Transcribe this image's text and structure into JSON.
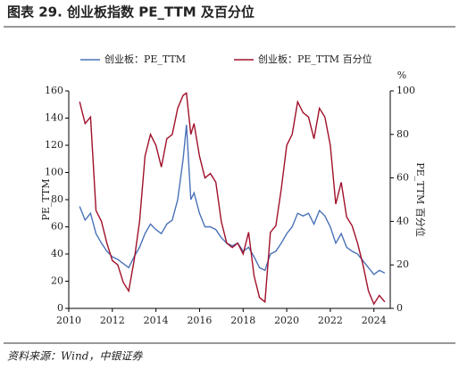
{
  "chart_data": {
    "type": "line",
    "title": "图表 29. 创业板指数 PE_TTM 及百分位",
    "source": "资料来源：Wind，中银证券",
    "ylabel": "PE_TTM",
    "y2label": "PE_TTM 百分位",
    "y2unit": "%",
    "x": [
      2010.5,
      2010.75,
      2011.0,
      2011.25,
      2011.5,
      2011.75,
      2012.0,
      2012.25,
      2012.5,
      2012.75,
      2013.0,
      2013.25,
      2013.5,
      2013.75,
      2014.0,
      2014.25,
      2014.5,
      2014.75,
      2015.0,
      2015.25,
      2015.4,
      2015.6,
      2015.75,
      2016.0,
      2016.25,
      2016.5,
      2016.75,
      2017.0,
      2017.25,
      2017.5,
      2017.75,
      2018.0,
      2018.25,
      2018.5,
      2018.75,
      2019.0,
      2019.25,
      2019.5,
      2019.75,
      2020.0,
      2020.25,
      2020.5,
      2020.75,
      2021.0,
      2021.25,
      2021.5,
      2021.75,
      2022.0,
      2022.25,
      2022.5,
      2022.75,
      2023.0,
      2023.25,
      2023.5,
      2023.75,
      2024.0,
      2024.25,
      2024.5
    ],
    "series": [
      {
        "name": "创业板：PE_TTM",
        "color": "#4a72b8",
        "axis": "y",
        "values": [
          75,
          65,
          70,
          55,
          48,
          42,
          38,
          36,
          33,
          30,
          38,
          45,
          55,
          62,
          58,
          55,
          62,
          65,
          80,
          110,
          135,
          80,
          85,
          70,
          60,
          60,
          58,
          52,
          48,
          46,
          48,
          42,
          45,
          38,
          30,
          28,
          40,
          42,
          48,
          55,
          60,
          70,
          68,
          70,
          62,
          72,
          68,
          60,
          48,
          55,
          45,
          42,
          40,
          35,
          30,
          25,
          28,
          26
        ]
      },
      {
        "name": "创业板：PE_TTM 百分位",
        "color": "#a0102a",
        "axis": "y2",
        "values": [
          95,
          85,
          88,
          45,
          40,
          30,
          22,
          20,
          12,
          8,
          22,
          40,
          70,
          80,
          75,
          65,
          78,
          80,
          92,
          98,
          99,
          80,
          85,
          70,
          60,
          62,
          58,
          40,
          30,
          28,
          30,
          25,
          35,
          15,
          5,
          3,
          35,
          38,
          55,
          75,
          80,
          95,
          90,
          88,
          78,
          92,
          88,
          75,
          48,
          58,
          42,
          38,
          30,
          20,
          8,
          2,
          6,
          3
        ]
      }
    ],
    "xlim": [
      2010,
      2024.75
    ],
    "xticks": [
      2010,
      2012,
      2014,
      2016,
      2018,
      2020,
      2022,
      2024
    ],
    "ylim": [
      0,
      160
    ],
    "yticks": [
      0,
      20,
      40,
      60,
      80,
      100,
      120,
      140,
      160
    ],
    "y2lim": [
      0,
      100
    ],
    "y2ticks": [
      0,
      20,
      40,
      60,
      80,
      100
    ],
    "grid": false
  }
}
